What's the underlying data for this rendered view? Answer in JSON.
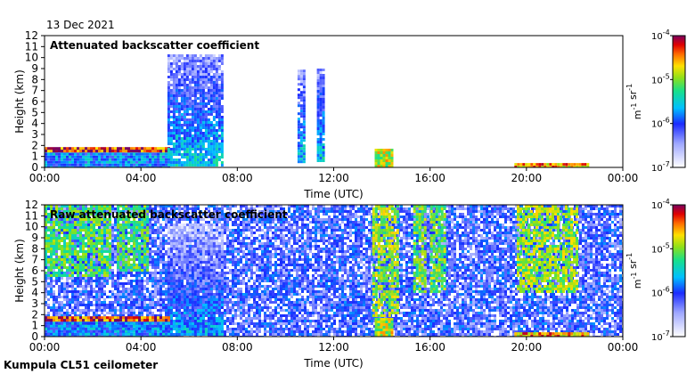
{
  "date_label": "13 Dec 2021",
  "footer": "Kumpula CL51 ceilometer",
  "chart_data": [
    {
      "type": "heatmap",
      "title": "Attenuated backscatter coefficient",
      "xlabel": "Time (UTC)",
      "ylabel": "Height (km)",
      "xticks": [
        "00:00",
        "04:00",
        "08:00",
        "12:00",
        "16:00",
        "20:00",
        "00:00"
      ],
      "xlim_hours": [
        0,
        24
      ],
      "ylim_km": [
        0,
        12
      ],
      "yticks": [
        0,
        1,
        2,
        3,
        4,
        5,
        6,
        7,
        8,
        9,
        10,
        11,
        12
      ],
      "features": [
        {
          "kind": "boundary_layer",
          "t0": 0,
          "t1": 5.2,
          "h0": 0,
          "h1": 1.8,
          "value_exp": -5.8
        },
        {
          "kind": "cloud_top_line",
          "t0": 0,
          "t1": 5.2,
          "h0": 1.55,
          "h1": 1.85,
          "value_exp": -4.2
        },
        {
          "kind": "precipitation",
          "t0": 5.1,
          "t1": 7.4,
          "h0": 0.3,
          "h1": 10.3,
          "value_exp": -5.7
        },
        {
          "kind": "high_cloud",
          "t0": 10.5,
          "t1": 10.8,
          "h0": 0.5,
          "h1": 8.9,
          "value_exp": -5.7
        },
        {
          "kind": "high_cloud",
          "t0": 11.3,
          "t1": 11.6,
          "h0": 0.5,
          "h1": 9.0,
          "value_exp": -5.7
        },
        {
          "kind": "low_cloud",
          "t0": 13.7,
          "t1": 14.4,
          "h0": 0.1,
          "h1": 1.7,
          "value_exp": -4.8
        },
        {
          "kind": "surface_layer",
          "t0": 19.5,
          "t1": 22.5,
          "h0": 0,
          "h1": 0.4,
          "value_exp": -4.5
        }
      ],
      "colorbar": {
        "label": "m-1 sr-1",
        "min": "1e-7",
        "max": "1e-4",
        "tick_labels": [
          "10-4",
          "10-5",
          "10-6",
          "10-7"
        ],
        "exponents": [
          -4,
          -5,
          -6,
          -7
        ]
      }
    },
    {
      "type": "heatmap",
      "title": "Raw attenuated backscatter coefficient",
      "xlabel": "Time (UTC)",
      "ylabel": "Height (km)",
      "xticks": [
        "00:00",
        "04:00",
        "08:00",
        "12:00",
        "16:00",
        "20:00",
        "00:00"
      ],
      "xlim_hours": [
        0,
        24
      ],
      "ylim_km": [
        0,
        12
      ],
      "yticks": [
        0,
        1,
        2,
        3,
        4,
        5,
        6,
        7,
        8,
        9,
        10,
        11,
        12
      ],
      "features": [
        {
          "kind": "noise_green",
          "t0": 0,
          "t1": 2.7,
          "h0": 5.5,
          "h1": 12,
          "value_exp": -5.2
        },
        {
          "kind": "noise_green",
          "t0": 3.0,
          "t1": 4.3,
          "h0": 6,
          "h1": 12,
          "value_exp": -5.2
        },
        {
          "kind": "precipitation",
          "t0": 5.1,
          "t1": 7.4,
          "h0": 0.3,
          "h1": 10.3,
          "value_exp": -5.9
        },
        {
          "kind": "noise_green",
          "t0": 13.6,
          "t1": 14.6,
          "h0": 2,
          "h1": 12,
          "value_exp": -5.0
        },
        {
          "kind": "noise_green",
          "t0": 15.3,
          "t1": 15.8,
          "h0": 4,
          "h1": 12,
          "value_exp": -5.1
        },
        {
          "kind": "noise_green",
          "t0": 16.0,
          "t1": 16.6,
          "h0": 4,
          "h1": 12,
          "value_exp": -5.1
        },
        {
          "kind": "noise_green",
          "t0": 19.6,
          "t1": 22.1,
          "h0": 4,
          "h1": 12,
          "value_exp": -5.0
        },
        {
          "kind": "boundary_layer",
          "t0": 0,
          "t1": 5.2,
          "h0": 0,
          "h1": 1.8,
          "value_exp": -5.8
        },
        {
          "kind": "cloud_top_line",
          "t0": 0,
          "t1": 5.2,
          "h0": 1.55,
          "h1": 1.85,
          "value_exp": -4.2
        },
        {
          "kind": "low_cloud",
          "t0": 13.7,
          "t1": 14.4,
          "h0": 0.1,
          "h1": 1.7,
          "value_exp": -4.8
        },
        {
          "kind": "surface_layer",
          "t0": 19.5,
          "t1": 22.5,
          "h0": 0,
          "h1": 0.4,
          "value_exp": -4.5
        }
      ],
      "colorbar": {
        "label": "m-1 sr-1",
        "min": "1e-7",
        "max": "1e-4",
        "tick_labels": [
          "10-4",
          "10-5",
          "10-6",
          "10-7"
        ],
        "exponents": [
          -4,
          -5,
          -6,
          -7
        ]
      }
    }
  ]
}
